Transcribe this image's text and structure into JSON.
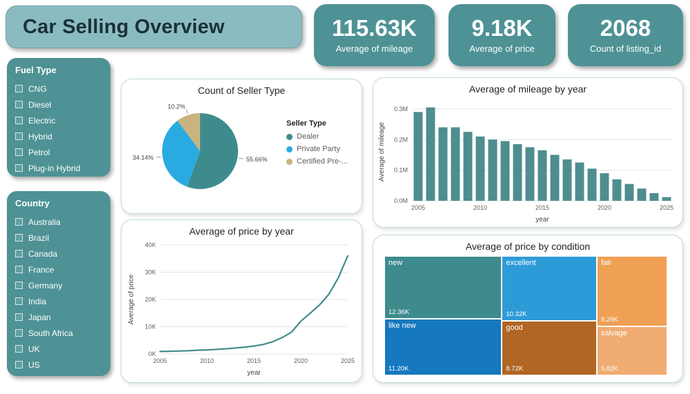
{
  "title": "Car Selling Overview",
  "kpis": [
    {
      "value": "115.63K",
      "label": "Average of mileage"
    },
    {
      "value": "9.18K",
      "label": "Average of price"
    },
    {
      "value": "2068",
      "label": "Count of listing_id"
    }
  ],
  "filters": [
    {
      "title": "Fuel Type",
      "options": [
        "CNG",
        "Diesel",
        "Electric",
        "Hybrid",
        "Petrol",
        "Plug-in Hybrid"
      ]
    },
    {
      "title": "Country",
      "options": [
        "Australia",
        "Brazil",
        "Canada",
        "France",
        "Germany",
        "India",
        "Japan",
        "South Africa",
        "UK",
        "US"
      ]
    }
  ],
  "colors": {
    "teal": "#4E9295",
    "title_bg": "#8ABBC0",
    "title_text": "#1B3038",
    "card_border": "#BFD9DD",
    "bar": "#4E8D90",
    "line": "#3F8D8A"
  },
  "chart_data": [
    {
      "type": "pie",
      "title": "Count of Seller Type",
      "legend_title": "Seller Type",
      "slices": [
        {
          "label": "Dealer",
          "pct": 55.66,
          "pct_label": "55.66%",
          "color": "#3E8B8D"
        },
        {
          "label": "Private Party",
          "pct": 34.14,
          "pct_label": "34.14%",
          "color": "#29ABE2"
        },
        {
          "label": "Certified Pre-...",
          "pct": 10.2,
          "pct_label": "10.2%",
          "color": "#C9B47F"
        }
      ]
    },
    {
      "type": "bar",
      "title": "Average of mileage by year",
      "xlabel": "year",
      "ylabel": "Average of mileage",
      "x": [
        2005,
        2006,
        2007,
        2008,
        2009,
        2010,
        2011,
        2012,
        2013,
        2014,
        2015,
        2016,
        2017,
        2018,
        2019,
        2020,
        2021,
        2022,
        2023,
        2024,
        2025
      ],
      "values": [
        0.29,
        0.305,
        0.24,
        0.24,
        0.225,
        0.21,
        0.2,
        0.195,
        0.185,
        0.175,
        0.165,
        0.15,
        0.135,
        0.125,
        0.105,
        0.09,
        0.07,
        0.055,
        0.04,
        0.025,
        0.012
      ],
      "ymax": 0.32,
      "yticks": [
        {
          "v": 0,
          "label": "0.0M"
        },
        {
          "v": 0.1,
          "label": "0.1M"
        },
        {
          "v": 0.2,
          "label": "0.2M"
        },
        {
          "v": 0.3,
          "label": "0.3M"
        }
      ],
      "color": "#4E8D90"
    },
    {
      "type": "line",
      "title": "Average of price by year",
      "xlabel": "year",
      "ylabel": "Average of price",
      "x": [
        2005,
        2006,
        2007,
        2008,
        2009,
        2010,
        2011,
        2012,
        2013,
        2014,
        2015,
        2016,
        2017,
        2018,
        2019,
        2020,
        2021,
        2022,
        2023,
        2024,
        2025
      ],
      "values": [
        0.9,
        1.0,
        1.1,
        1.2,
        1.4,
        1.5,
        1.7,
        1.9,
        2.2,
        2.5,
        2.9,
        3.5,
        4.5,
        6.0,
        8.0,
        12.0,
        15.0,
        18.0,
        22.0,
        28.0,
        36.0
      ],
      "ymax": 40,
      "yticks": [
        {
          "v": 0,
          "label": "0K"
        },
        {
          "v": 10,
          "label": "10K"
        },
        {
          "v": 20,
          "label": "20K"
        },
        {
          "v": 30,
          "label": "30K"
        },
        {
          "v": 40,
          "label": "40K"
        }
      ],
      "color": "#3F8D8A"
    },
    {
      "type": "treemap",
      "title": "Average of price by condition",
      "cells": [
        {
          "label": "new",
          "value": 12.36,
          "value_label": "12.36K",
          "color": "#3E8B8D"
        },
        {
          "label": "excellent",
          "value": 10.32,
          "value_label": "10.32K",
          "color": "#2D9BD8"
        },
        {
          "label": "fair",
          "value": 8.29,
          "value_label": "8.29K",
          "color": "#EFA055"
        },
        {
          "label": "like new",
          "value": 11.2,
          "value_label": "11.20K",
          "color": "#1678BE"
        },
        {
          "label": "good",
          "value": 8.72,
          "value_label": "8.72K",
          "color": "#B06624"
        },
        {
          "label": "salvage",
          "value": 5.82,
          "value_label": "5.82K",
          "color": "#F0AC72"
        }
      ],
      "column_pairs": [
        [
          0,
          3
        ],
        [
          1,
          4
        ],
        [
          2,
          5
        ]
      ]
    }
  ]
}
